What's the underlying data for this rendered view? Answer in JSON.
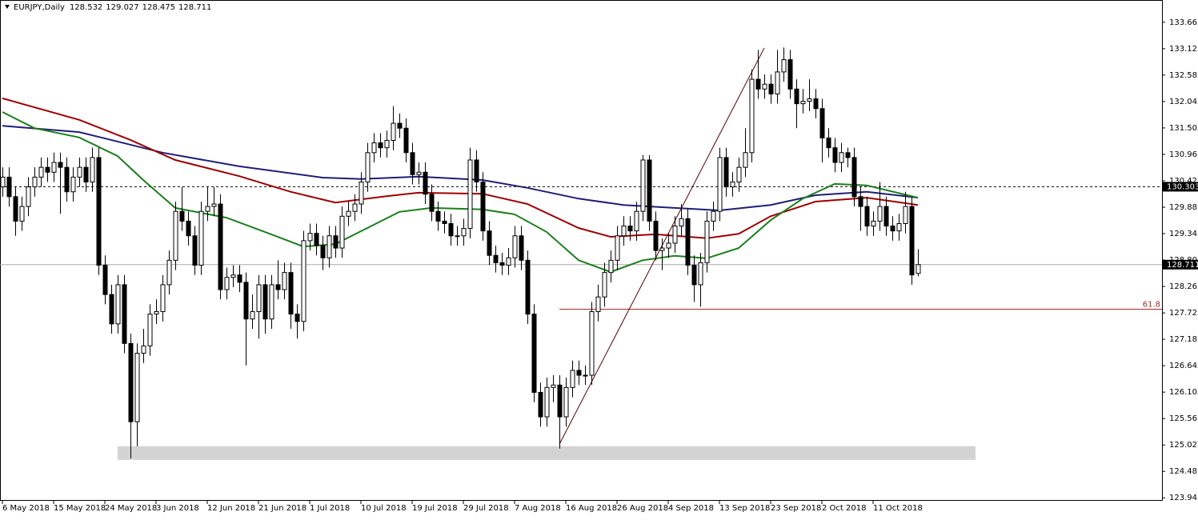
{
  "chart_data": {
    "type": "candlestick",
    "symbol": "EURJPY,Daily",
    "categories": [
      "6 May 2018",
      null,
      null,
      null,
      null,
      null,
      null,
      null,
      "15 May 2018",
      null,
      null,
      null,
      null,
      null,
      null,
      null,
      "24 May 2018",
      null,
      null,
      null,
      null,
      null,
      null,
      null,
      "3 Jun 2018",
      null,
      null,
      null,
      null,
      null,
      null,
      null,
      "12 Jun 2018",
      null,
      null,
      null,
      null,
      null,
      null,
      null,
      "21 Jun 2018",
      null,
      null,
      null,
      null,
      null,
      null,
      null,
      "1 Jul 2018",
      null,
      null,
      null,
      null,
      null,
      null,
      null,
      "10 Jul 2018",
      null,
      null,
      null,
      null,
      null,
      null,
      null,
      "19 Jul 2018",
      null,
      null,
      null,
      null,
      null,
      null,
      null,
      "29 Jul 2018",
      null,
      null,
      null,
      null,
      null,
      null,
      null,
      "7 Aug 2018",
      null,
      null,
      null,
      null,
      null,
      null,
      null,
      "16 Aug 2018",
      null,
      null,
      null,
      null,
      null,
      null,
      null,
      "26 Aug 2018",
      null,
      null,
      null,
      null,
      null,
      null,
      null,
      "4 Sep 2018",
      null,
      null,
      null,
      null,
      null,
      null,
      null,
      "13 Sep 2018",
      null,
      null,
      null,
      null,
      null,
      null,
      null,
      "23 Sep 2018",
      null,
      null,
      null,
      null,
      null,
      null,
      null,
      "2 Oct 2018",
      null,
      null,
      null,
      null,
      null,
      null,
      null,
      "11 Oct 2018",
      null,
      null,
      null,
      null,
      null,
      null,
      null
    ],
    "open": [
      130.3,
      130.5,
      130.1,
      129.6,
      129.9,
      130.3,
      130.5,
      130.7,
      130.6,
      130.8,
      130.7,
      130.2,
      130.5,
      130.7,
      130.4,
      130.9,
      128.7,
      128.1,
      127.5,
      128.3,
      127.1,
      125.5,
      126.9,
      127.05,
      127.7,
      127.75,
      128.3,
      128.8,
      129.8,
      129.6,
      129.3,
      128.7,
      129.8,
      129.9,
      129.95,
      128.2,
      128.45,
      128.5,
      128.35,
      127.6,
      127.75,
      128.3,
      127.6,
      128.3,
      128.2,
      128.55,
      127.7,
      127.55,
      129.2,
      129.35,
      129.1,
      128.85,
      129.3,
      129.05,
      129.7,
      129.8,
      129.95,
      130.4,
      131.0,
      131.2,
      131.1,
      131.25,
      131.6,
      131.5,
      131.0,
      130.55,
      130.6,
      130.15,
      129.8,
      129.6,
      129.55,
      129.3,
      129.3,
      129.45,
      130.85,
      130.4,
      129.4,
      128.9,
      128.75,
      128.7,
      128.85,
      129.3,
      128.8,
      127.7,
      126.1,
      125.6,
      126.2,
      126.25,
      125.6,
      126.2,
      126.55,
      126.45,
      126.45,
      127.75,
      128.05,
      128.55,
      128.8,
      129.3,
      129.5,
      129.4,
      129.8,
      130.85,
      129.6,
      129.0,
      129.05,
      129.15,
      129.5,
      129.65,
      128.7,
      128.3,
      128.75,
      129.6,
      129.8,
      130.9,
      130.3,
      130.4,
      130.7,
      131.0,
      132.5,
      132.3,
      132.4,
      132.2,
      132.65,
      132.9,
      132.3,
      132.0,
      132.05,
      132.1,
      131.9,
      131.3,
      131.1,
      130.8,
      131.0,
      130.9,
      130.1,
      129.9,
      129.5,
      129.6,
      129.9,
      129.5,
      129.4,
      129.55,
      129.9,
      128.532
    ],
    "high": [
      130.7,
      130.7,
      130.3,
      130.1,
      130.5,
      130.7,
      130.9,
      130.9,
      131.0,
      131.0,
      130.9,
      130.7,
      130.9,
      130.9,
      131.1,
      131.1,
      128.9,
      128.3,
      128.5,
      128.5,
      127.3,
      127.1,
      127.4,
      127.9,
      128.0,
      128.5,
      129.0,
      130.0,
      130.3,
      129.8,
      129.5,
      130.0,
      130.3,
      130.3,
      130.15,
      128.65,
      128.7,
      128.7,
      128.55,
      128.1,
      128.5,
      128.5,
      128.5,
      128.8,
      128.75,
      128.75,
      127.9,
      129.4,
      129.55,
      129.55,
      129.3,
      129.5,
      129.5,
      129.9,
      130.0,
      130.15,
      130.6,
      131.2,
      131.4,
      131.4,
      131.45,
      131.95,
      131.8,
      131.7,
      131.2,
      130.8,
      130.8,
      130.35,
      130.0,
      129.8,
      129.75,
      129.5,
      129.65,
      131.1,
      131.05,
      130.6,
      129.6,
      129.1,
      128.95,
      129.05,
      129.5,
      129.5,
      129.0,
      127.9,
      126.3,
      126.4,
      126.45,
      126.45,
      126.4,
      126.75,
      126.75,
      126.65,
      127.95,
      128.3,
      128.75,
      129.0,
      129.5,
      129.7,
      129.7,
      130.0,
      130.95,
      130.95,
      129.8,
      129.25,
      129.35,
      129.7,
      129.95,
      129.85,
      128.9,
      128.95,
      129.8,
      130.0,
      131.1,
      131.1,
      130.6,
      130.9,
      131.5,
      132.7,
      133.1,
      132.6,
      132.6,
      133.1,
      133.15,
      133.1,
      132.5,
      132.3,
      132.5,
      132.3,
      132.1,
      131.5,
      131.3,
      131.2,
      131.1,
      131.1,
      130.3,
      130.1,
      129.8,
      130.4,
      130.1,
      129.7,
      129.75,
      130.2,
      130.1,
      129.027
    ],
    "low": [
      130.1,
      129.9,
      129.3,
      129.4,
      129.7,
      130.1,
      130.3,
      130.4,
      130.4,
      129.75,
      130.0,
      130.0,
      130.3,
      130.2,
      130.2,
      128.5,
      127.9,
      127.3,
      127.3,
      126.9,
      124.75,
      125.0,
      126.7,
      126.85,
      127.5,
      127.55,
      128.1,
      128.6,
      129.4,
      129.1,
      128.5,
      128.5,
      129.6,
      129.7,
      128.0,
      128.0,
      128.25,
      128.15,
      126.65,
      127.4,
      127.2,
      127.3,
      127.4,
      128.0,
      128.0,
      127.4,
      127.2,
      127.35,
      129.0,
      128.9,
      128.6,
      128.65,
      128.85,
      128.85,
      129.5,
      129.6,
      129.75,
      130.2,
      130.8,
      130.9,
      130.9,
      131.05,
      131.3,
      130.8,
      130.35,
      130.35,
      129.95,
      129.6,
      129.4,
      129.35,
      129.1,
      129.1,
      129.1,
      129.25,
      130.2,
      129.2,
      128.7,
      128.55,
      128.5,
      128.5,
      128.65,
      128.6,
      127.5,
      125.9,
      125.4,
      125.4,
      125.9,
      124.95,
      125.4,
      126.0,
      126.25,
      126.25,
      126.25,
      127.55,
      127.85,
      128.35,
      128.6,
      129.1,
      129.2,
      129.2,
      129.6,
      129.4,
      128.8,
      128.6,
      128.85,
      128.95,
      129.3,
      128.5,
      127.95,
      127.85,
      128.55,
      129.4,
      129.6,
      130.1,
      130.1,
      130.2,
      130.5,
      130.8,
      132.1,
      132.1,
      132.0,
      132.0,
      132.45,
      132.1,
      131.5,
      131.8,
      131.85,
      131.7,
      130.8,
      130.9,
      130.6,
      130.6,
      130.7,
      129.9,
      129.4,
      129.3,
      129.3,
      129.4,
      129.3,
      129.2,
      129.2,
      129.35,
      128.3,
      128.475
    ],
    "close": [
      130.5,
      130.1,
      129.6,
      129.9,
      130.3,
      130.5,
      130.7,
      130.6,
      130.8,
      130.7,
      130.2,
      130.5,
      130.7,
      130.4,
      130.9,
      128.7,
      128.1,
      127.5,
      128.3,
      127.1,
      125.5,
      126.9,
      127.05,
      127.7,
      127.75,
      128.3,
      128.8,
      129.8,
      129.6,
      129.3,
      128.7,
      129.8,
      129.9,
      129.95,
      128.2,
      128.45,
      128.5,
      128.35,
      127.6,
      127.75,
      128.3,
      127.6,
      128.3,
      128.2,
      128.55,
      127.7,
      127.55,
      129.2,
      129.35,
      129.1,
      128.85,
      129.3,
      129.05,
      129.7,
      129.8,
      129.95,
      130.4,
      131.0,
      131.2,
      131.1,
      131.25,
      131.6,
      131.5,
      131.0,
      130.55,
      130.6,
      130.15,
      129.8,
      129.6,
      129.55,
      129.3,
      129.3,
      129.45,
      130.85,
      130.4,
      129.4,
      128.9,
      128.75,
      128.7,
      128.85,
      129.3,
      128.8,
      127.7,
      126.1,
      125.6,
      126.2,
      126.25,
      125.6,
      126.2,
      126.55,
      126.45,
      126.45,
      127.75,
      128.05,
      128.55,
      128.8,
      129.3,
      129.5,
      129.4,
      129.8,
      130.85,
      129.6,
      129.0,
      129.05,
      129.15,
      129.5,
      129.65,
      128.7,
      128.3,
      128.75,
      129.6,
      129.8,
      130.9,
      130.3,
      130.4,
      130.7,
      131.0,
      132.5,
      132.3,
      132.4,
      132.2,
      132.65,
      132.9,
      132.3,
      132.0,
      132.05,
      132.1,
      131.9,
      131.3,
      131.1,
      130.8,
      131.0,
      130.9,
      130.1,
      129.9,
      129.5,
      129.6,
      129.9,
      129.5,
      129.4,
      129.55,
      129.9,
      128.5,
      128.711
    ],
    "bull_color": "#ffffff",
    "bear_color": "#000000",
    "ylim": [
      123.9,
      134.12
    ],
    "yticks": [
      123.945,
      124.485,
      125.025,
      125.565,
      126.105,
      126.645,
      127.185,
      127.725,
      128.265,
      128.805,
      129.345,
      129.885,
      130.425,
      130.965,
      131.505,
      132.045,
      132.585,
      133.125,
      133.665
    ],
    "moving_averages": [
      {
        "color": "#1e1e78",
        "x": [
          0,
          12,
          25,
          37,
          50,
          56,
          65,
          75,
          82,
          90,
          97,
          105,
          112,
          120,
          127,
          135,
          143
        ],
        "values": [
          131.55,
          131.42,
          131.0,
          130.72,
          130.49,
          130.46,
          130.51,
          130.44,
          130.28,
          130.06,
          129.93,
          129.87,
          129.82,
          129.93,
          130.13,
          130.2,
          130.08
        ]
      },
      {
        "color": "#a00000",
        "x": [
          0,
          12,
          20,
          27,
          37,
          45,
          52,
          60,
          65,
          75,
          82,
          90,
          95,
          102,
          110,
          115,
          120,
          127,
          135,
          143
        ],
        "values": [
          132.11,
          131.67,
          131.26,
          130.85,
          130.52,
          130.2,
          129.98,
          130.11,
          130.18,
          130.16,
          129.95,
          129.46,
          129.28,
          129.33,
          129.25,
          129.34,
          129.7,
          130.0,
          130.08,
          129.93
        ]
      },
      {
        "color": "#1a801a",
        "x": [
          0,
          5,
          12,
          18,
          22,
          27,
          35,
          42,
          47,
          52,
          57,
          62,
          67,
          75,
          80,
          85,
          90,
          95,
          100,
          105,
          110,
          115,
          120,
          125,
          130,
          135,
          143
        ],
        "values": [
          131.83,
          131.5,
          131.31,
          130.93,
          130.44,
          129.87,
          129.67,
          129.33,
          129.08,
          129.13,
          129.46,
          129.79,
          129.87,
          129.84,
          129.74,
          129.38,
          128.8,
          128.56,
          128.8,
          128.89,
          128.84,
          129.05,
          129.62,
          130.06,
          130.36,
          130.33,
          130.08
        ]
      }
    ],
    "horizontal_line": {
      "value": 130.303
    },
    "fibo": {
      "value": 127.8,
      "label": "61.8",
      "x": 87,
      "color": "#a52a2a"
    },
    "trendline": {
      "x": [
        87,
        119
      ],
      "values": [
        125.04,
        133.14
      ]
    },
    "zone": {
      "x": [
        18,
        152
      ],
      "values": [
        124.72,
        125.0
      ],
      "color": "#d3d3d3"
    }
  }
}
